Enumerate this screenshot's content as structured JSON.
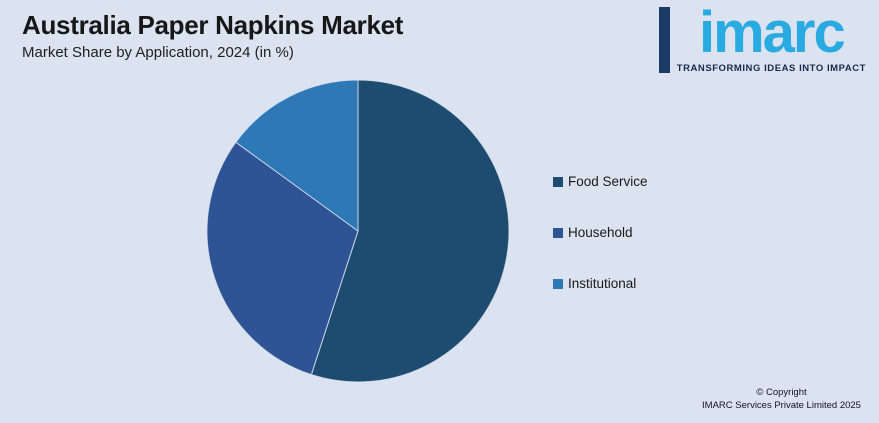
{
  "page": {
    "background": "#dbe2f0"
  },
  "header": {
    "title": "Australia Paper Napkins Market",
    "subtitle": "Market Share by Application, 2024 (in %)"
  },
  "logo": {
    "wordmark": "imarc",
    "tagline": "TRANSFORMING IDEAS INTO IMPACT",
    "brand_color": "#29abe2",
    "accent_bar_color": "#1b3a66",
    "tagline_color": "#172a4d"
  },
  "chart_data": {
    "type": "pie",
    "title": "Australia Paper Napkins Market",
    "subtitle": "Market Share by Application, 2024 (in %)",
    "unit": "%",
    "categories": [
      "Food Service",
      "Household",
      "Institutional"
    ],
    "values": [
      55,
      30,
      15
    ],
    "colors": [
      "#1d4c70",
      "#2e5495",
      "#2e78b6"
    ],
    "start_angle_deg": 0,
    "direction": "clockwise",
    "legend_position": "right",
    "data_labels": false
  },
  "footer": {
    "line1": "© Copyright",
    "line2": "IMARC Services Private Limited 2025"
  }
}
